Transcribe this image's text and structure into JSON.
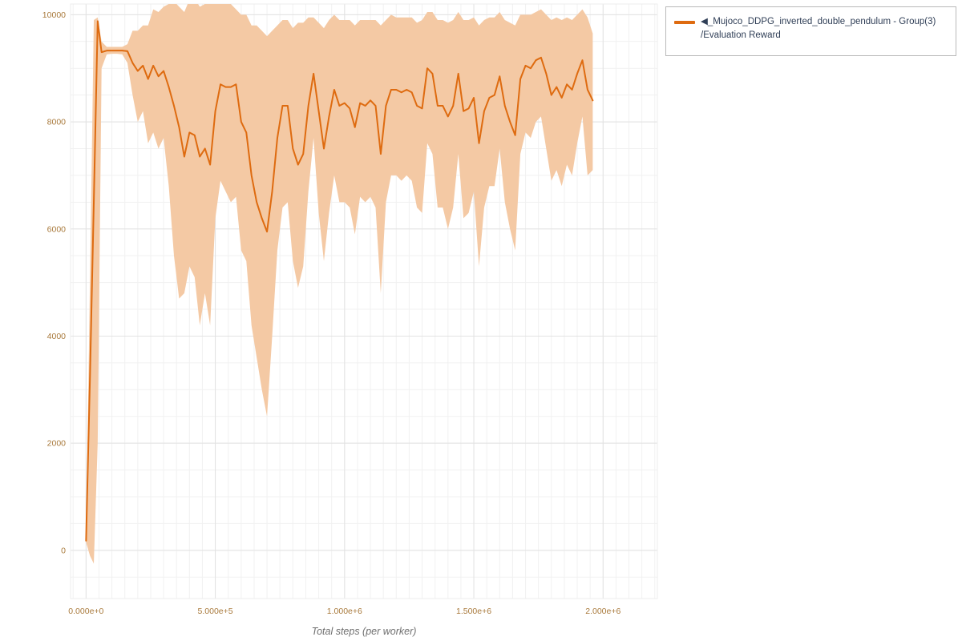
{
  "style": {
    "background": "#ffffff",
    "line_color": "#de6b10",
    "band_color": "#f4c9a4",
    "tick_label_color": "#a97a3c",
    "axis_title_color": "#6f6f6f",
    "grid_major_color": "#e2e2e2",
    "grid_minor_color": "#f1f1f1",
    "plot_outline_color": "#ececec",
    "legend_border_color": "#b9b9b9",
    "legend_text_color": "#2f3e56"
  },
  "legend": {
    "entries": [
      {
        "label_line1": "◀_Mujoco_DDPG_inverted_double_pendulum - Group(3)",
        "label_line2": "/Evaluation Reward",
        "color": "#de6b10"
      }
    ]
  },
  "chart_data": {
    "type": "line",
    "title": "",
    "xlabel": "Total steps (per worker)",
    "ylabel": "",
    "xlim": [
      -60000,
      2210000
    ],
    "ylim": [
      -900,
      10200
    ],
    "grid": {
      "minor_x_step": 50000,
      "minor_y_step": 500,
      "legend_position": "top-right-outside",
      "grid_on": true
    },
    "x_ticks": [
      {
        "value": 0,
        "label": "0.000e+0"
      },
      {
        "value": 500000,
        "label": "5.000e+5"
      },
      {
        "value": 1000000,
        "label": "1.000e+6"
      },
      {
        "value": 1500000,
        "label": "1.500e+6"
      },
      {
        "value": 2000000,
        "label": "2.000e+6"
      }
    ],
    "y_ticks": [
      {
        "value": 0,
        "label": "0"
      },
      {
        "value": 2000,
        "label": "2000"
      },
      {
        "value": 4000,
        "label": "4000"
      },
      {
        "value": 6000,
        "label": "6000"
      },
      {
        "value": 8000,
        "label": "8000"
      },
      {
        "value": 10000,
        "label": "10000"
      }
    ],
    "series": [
      {
        "name": "Mujoco_DDPG_inverted_double_pendulum - Group(3) / Evaluation Reward",
        "color": "#de6b10",
        "band_color": "#f4c9a4",
        "x": [
          0,
          15000,
          30000,
          45000,
          60000,
          80000,
          100000,
          120000,
          140000,
          160000,
          180000,
          200000,
          220000,
          240000,
          260000,
          280000,
          300000,
          320000,
          340000,
          360000,
          380000,
          400000,
          420000,
          440000,
          460000,
          480000,
          500000,
          520000,
          540000,
          560000,
          580000,
          600000,
          620000,
          640000,
          660000,
          680000,
          700000,
          720000,
          740000,
          760000,
          780000,
          800000,
          820000,
          840000,
          860000,
          880000,
          900000,
          920000,
          940000,
          960000,
          980000,
          1000000,
          1020000,
          1040000,
          1060000,
          1080000,
          1100000,
          1120000,
          1140000,
          1160000,
          1180000,
          1200000,
          1220000,
          1240000,
          1260000,
          1280000,
          1300000,
          1320000,
          1340000,
          1360000,
          1380000,
          1400000,
          1420000,
          1440000,
          1460000,
          1480000,
          1500000,
          1520000,
          1540000,
          1560000,
          1580000,
          1600000,
          1620000,
          1640000,
          1660000,
          1680000,
          1700000,
          1720000,
          1740000,
          1760000,
          1780000,
          1800000,
          1820000,
          1840000,
          1860000,
          1880000,
          1900000,
          1920000,
          1940000,
          1960000
        ],
        "mean": [
          180,
          3200,
          6500,
          9880,
          9300,
          9330,
          9330,
          9330,
          9330,
          9320,
          9100,
          8950,
          9050,
          8800,
          9050,
          8850,
          8950,
          8650,
          8300,
          7900,
          7350,
          7800,
          7750,
          7350,
          7500,
          7200,
          8200,
          8700,
          8650,
          8650,
          8700,
          8000,
          7800,
          7000,
          6500,
          6200,
          5950,
          6700,
          7700,
          8300,
          8300,
          7500,
          7200,
          7400,
          8300,
          8900,
          8200,
          7500,
          8100,
          8600,
          8300,
          8350,
          8250,
          7900,
          8350,
          8300,
          8400,
          8300,
          7400,
          8300,
          8600,
          8600,
          8550,
          8600,
          8550,
          8300,
          8250,
          9000,
          8900,
          8300,
          8300,
          8100,
          8300,
          8900,
          8200,
          8250,
          8450,
          7600,
          8200,
          8450,
          8500,
          8850,
          8300,
          8000,
          7750,
          8800,
          9050,
          9000,
          9150,
          9200,
          8900,
          8500,
          8650,
          8450,
          8700,
          8600,
          8900,
          9150,
          8600,
          8400
        ],
        "lo": [
          150,
          -100,
          -250,
          2000,
          9000,
          9260,
          9270,
          9270,
          9260,
          9100,
          8500,
          8000,
          8200,
          7600,
          7800,
          7500,
          7700,
          6800,
          5500,
          4700,
          4800,
          5300,
          5100,
          4200,
          4800,
          4200,
          6200,
          6900,
          6700,
          6500,
          6600,
          5600,
          5400,
          4200,
          3600,
          3000,
          2500,
          4000,
          5600,
          6400,
          6500,
          5400,
          4900,
          5300,
          6700,
          7700,
          6300,
          5400,
          6300,
          7000,
          6500,
          6500,
          6400,
          5900,
          6600,
          6500,
          6600,
          6400,
          4800,
          6500,
          7000,
          7000,
          6900,
          7000,
          6900,
          6400,
          6300,
          7600,
          7400,
          6400,
          6400,
          6000,
          6400,
          7400,
          6200,
          6300,
          6700,
          5300,
          6400,
          6800,
          6800,
          7500,
          6500,
          6000,
          5600,
          7400,
          7800,
          7700,
          8000,
          8100,
          7500,
          6900,
          7100,
          6800,
          7200,
          7000,
          7600,
          8100,
          7000,
          7100
        ],
        "hi": [
          250,
          5000,
          9900,
          9950,
          9500,
          9400,
          9400,
          9400,
          9400,
          9450,
          9700,
          9700,
          9800,
          9800,
          10100,
          10050,
          10150,
          10200,
          10250,
          10150,
          10050,
          10280,
          10300,
          10150,
          10200,
          10300,
          10300,
          10200,
          10300,
          10200,
          10100,
          10000,
          10000,
          9800,
          9800,
          9700,
          9600,
          9700,
          9800,
          9900,
          9900,
          9750,
          9850,
          9850,
          9950,
          9950,
          9850,
          9750,
          9900,
          10000,
          9900,
          9900,
          9900,
          9800,
          9900,
          9900,
          9900,
          9900,
          9800,
          9900,
          10000,
          9950,
          9950,
          9950,
          9950,
          9850,
          9900,
          10050,
          10050,
          9900,
          9900,
          9850,
          9900,
          10050,
          9900,
          9900,
          9950,
          9800,
          9900,
          9950,
          9950,
          10050,
          9900,
          9850,
          9800,
          10000,
          10000,
          10000,
          10050,
          10100,
          10000,
          9900,
          9950,
          9900,
          9950,
          9900,
          10000,
          10100,
          9950,
          9650
        ]
      }
    ]
  }
}
